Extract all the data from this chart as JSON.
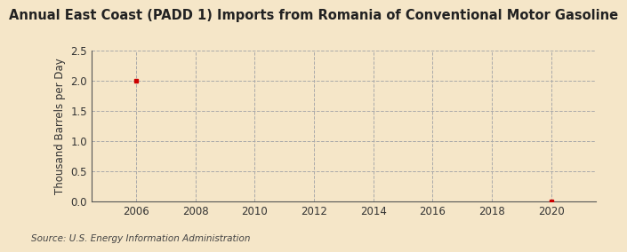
{
  "title": "Annual East Coast (PADD 1) Imports from Romania of Conventional Motor Gasoline",
  "ylabel": "Thousand Barrels per Day",
  "source": "Source: U.S. Energy Information Administration",
  "background_color": "#f5e6c8",
  "plot_bg_color": "#f5e6c8",
  "x_data": [
    2006,
    2020
  ],
  "y_data": [
    2.0,
    0.0
  ],
  "marker_color": "#cc0000",
  "marker_style": "s",
  "marker_size": 3.5,
  "xlim": [
    2004.5,
    2021.5
  ],
  "ylim": [
    0.0,
    2.5
  ],
  "xticks": [
    2006,
    2008,
    2010,
    2012,
    2014,
    2016,
    2018,
    2020
  ],
  "yticks": [
    0.0,
    0.5,
    1.0,
    1.5,
    2.0,
    2.5
  ],
  "grid_color": "#aaaaaa",
  "grid_style": "--",
  "title_fontsize": 10.5,
  "label_fontsize": 8.5,
  "tick_fontsize": 8.5,
  "source_fontsize": 7.5
}
